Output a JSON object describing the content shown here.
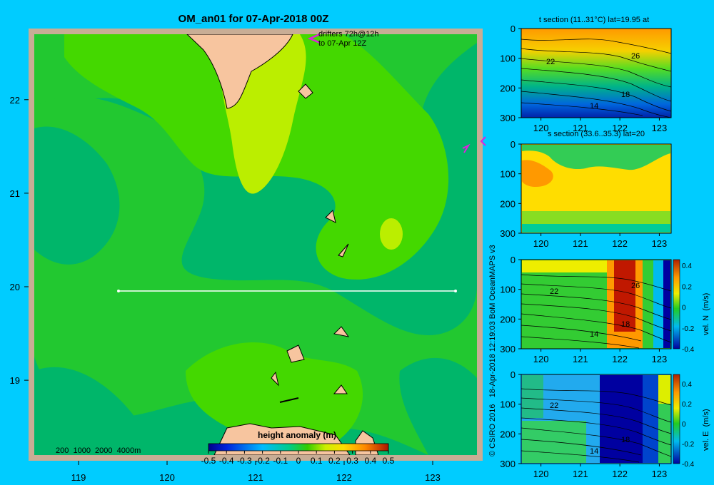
{
  "title": "OM_an01 for 07-Apr-2018 00Z",
  "credit": "© CSIRO 2016   18-Apr-2018 12:19:03 BoM OceanMAPS v3",
  "colors": {
    "background": "#00ccff",
    "land": "#f7c59f",
    "shelf": "#c8ad95",
    "drifter": "#e020e0",
    "section_line": "#ffffff"
  },
  "map": {
    "xticks": [
      "119",
      "120",
      "121",
      "122",
      "123"
    ],
    "yticks": [
      "22",
      "21",
      "20",
      "19"
    ],
    "xlim": [
      118.5,
      123.5
    ],
    "ylim": [
      18.2,
      22.7
    ],
    "drifter_label_1": "drifters 72h@12h",
    "drifter_label_2": "to 07-Apr 12Z",
    "depth_legend": "200  1000  2000  4000m",
    "section_line": {
      "lat": 20,
      "lon_start": 119.5,
      "lon_end": 123.2
    }
  },
  "colorbar": {
    "title": "height anomaly  (m)",
    "ticks": [
      "-0.5",
      "-0.4",
      "-0.3",
      "-0.2",
      "-0.1",
      "0",
      "0.1",
      "0.2",
      "0.3",
      "0.4",
      "0.5"
    ],
    "range": [
      -0.5,
      0.5
    ]
  },
  "chart_data": [
    {
      "type": "heatmap",
      "title": "OM_an01 for 07-Apr-2018 00Z",
      "variable": "height anomaly (m)",
      "xlim": [
        118.5,
        123.5
      ],
      "ylim": [
        18.2,
        22.7
      ],
      "xticks": [
        119,
        120,
        121,
        122,
        123
      ],
      "yticks": [
        19,
        20,
        21,
        22
      ],
      "zlim": [
        -0.5,
        0.5
      ],
      "features": [
        {
          "lon": 120.1,
          "lat": 21.0,
          "value": 0.15
        },
        {
          "lon": 121.0,
          "lat": 21.8,
          "value": 0.25
        },
        {
          "lon": 122.5,
          "lat": 20.6,
          "value": 0.2
        },
        {
          "lon": 120.0,
          "lat": 20.0,
          "value": 0.0
        },
        {
          "lon": 122.5,
          "lat": 22.1,
          "value": -0.05
        },
        {
          "lon": 121.5,
          "lat": 19.1,
          "value": 0.05
        },
        {
          "lon": 119.0,
          "lat": 18.7,
          "value": -0.05
        }
      ]
    },
    {
      "type": "heatmap",
      "title": "t section (11..31°C) lat=19.95 at",
      "xticks": [
        120,
        121,
        122,
        123
      ],
      "yticks": [
        0,
        100,
        200,
        300
      ],
      "xlim": [
        119.5,
        123.3
      ],
      "ylim": [
        300,
        0
      ],
      "contour_labels": [
        "22",
        "26",
        "18",
        "14"
      ]
    },
    {
      "type": "heatmap",
      "title": "s section (33.6..35.3) lat=20",
      "xticks": [
        120,
        121,
        122,
        123
      ],
      "yticks": [
        0,
        100,
        200,
        300
      ],
      "xlim": [
        119.5,
        123.3
      ],
      "ylim": [
        300,
        0
      ]
    },
    {
      "type": "heatmap",
      "variable": "vel. N (m/s)",
      "xticks": [
        120,
        121,
        122,
        123
      ],
      "yticks": [
        0,
        100,
        200,
        300
      ],
      "xlim": [
        119.5,
        123.3
      ],
      "ylim": [
        300,
        0
      ],
      "zlim": [
        -0.4,
        0.4
      ],
      "cbar_ticks": [
        "0.4",
        "0.2",
        "0",
        "-0.2",
        "-0.4"
      ],
      "contour_labels": [
        "22",
        "26",
        "18",
        "14"
      ]
    },
    {
      "type": "heatmap",
      "variable": "vel. E (m/s)",
      "xticks": [
        120,
        121,
        122,
        123
      ],
      "yticks": [
        0,
        100,
        200,
        300
      ],
      "xlim": [
        119.5,
        123.3
      ],
      "ylim": [
        300,
        0
      ],
      "zlim": [
        -0.4,
        0.4
      ],
      "cbar_ticks": [
        "0.4",
        "0.2",
        "0",
        "-0.2",
        "-0.4"
      ],
      "contour_labels": [
        "22",
        "18",
        "14"
      ]
    }
  ],
  "panels": {
    "t": {
      "title": "t section (11..31°C) lat=19.95 at",
      "labels": [
        "22",
        "26",
        "18",
        "14"
      ]
    },
    "s": {
      "title": "s section (33.6..35.3) lat=20"
    },
    "n": {
      "cbar_label": "vel. N  (m/s)",
      "labels": [
        "22",
        "26",
        "18",
        "14"
      ]
    },
    "e": {
      "cbar_label": "vel. E  (m/s)",
      "labels": [
        "22",
        "18",
        "14"
      ]
    },
    "xticks": [
      "120",
      "121",
      "122",
      "123"
    ],
    "yticks": [
      "0",
      "100",
      "200",
      "300"
    ],
    "cbar_ticks": [
      "0.4",
      "0.2",
      "0",
      "-0.2",
      "-0.4"
    ]
  }
}
